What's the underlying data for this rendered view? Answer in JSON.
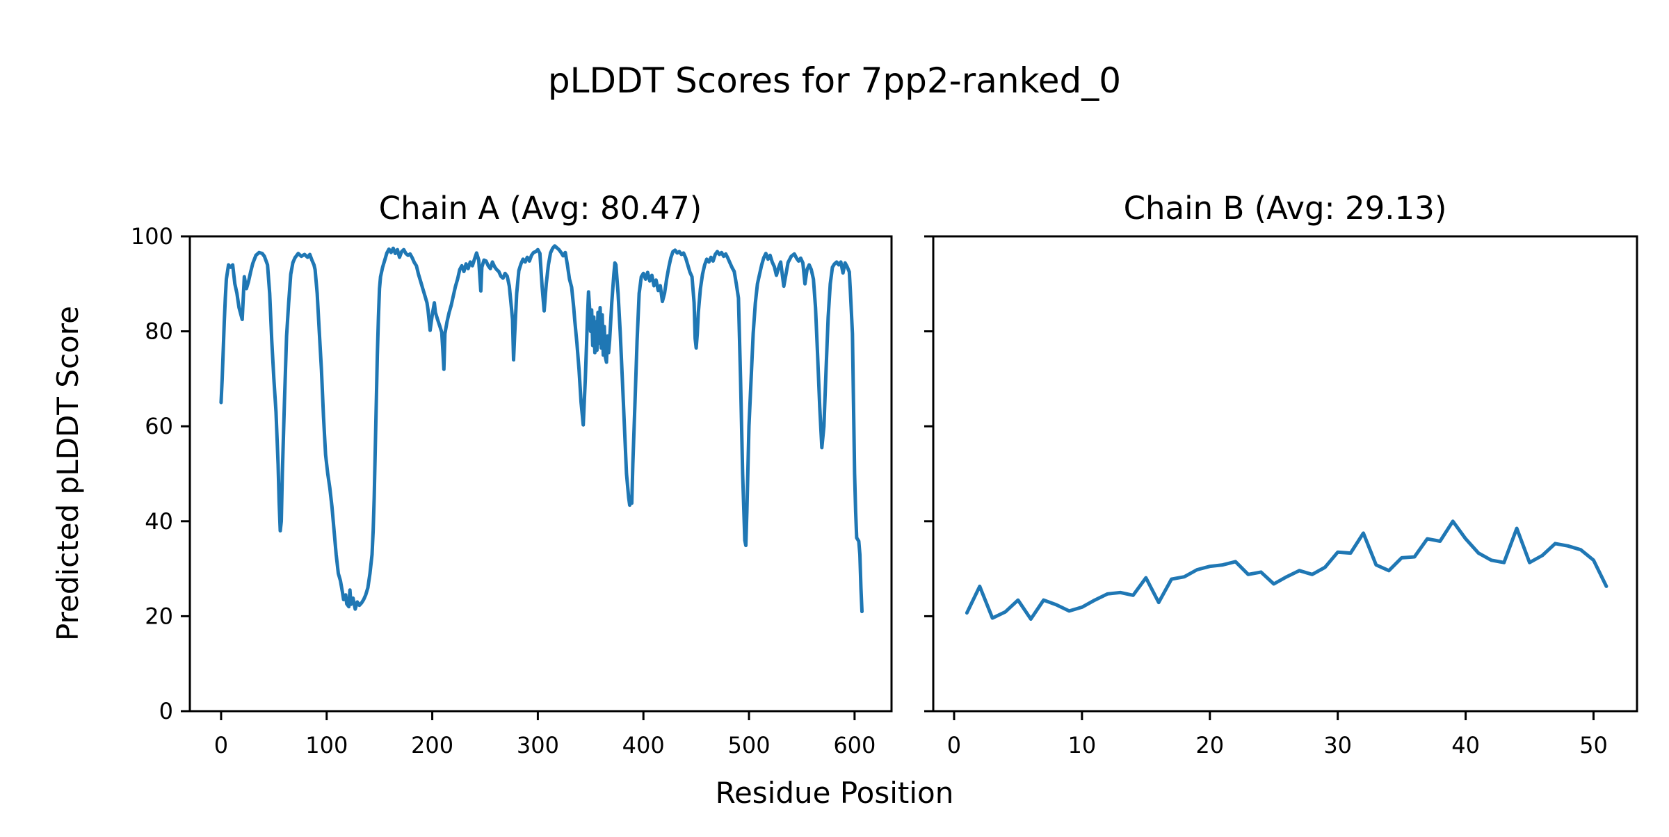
{
  "figure": {
    "title": "pLDDT Scores for 7pp2-ranked_0",
    "xlabel": "Residue Position",
    "ylabel": "Predicted pLDDT Score",
    "line_color": "#1f77b4",
    "axis_color": "#000000",
    "background": "#ffffff"
  },
  "chart_data": [
    {
      "type": "line",
      "title": "Chain A (Avg: 80.47)",
      "avg_label": 80.47,
      "ylim": [
        0,
        100
      ],
      "xlim": [
        -29.6,
        635
      ],
      "xticks": [
        0,
        100,
        200,
        300,
        400,
        500,
        600
      ],
      "yticks": [
        0,
        20,
        40,
        60,
        80,
        100
      ],
      "show_ytick_labels": true,
      "grid": false,
      "legend": false,
      "series": [
        {
          "name": "Chain A",
          "x": [
            0,
            1,
            2,
            3,
            4,
            5,
            7,
            9,
            11,
            13,
            15,
            17,
            20,
            22,
            24,
            26,
            28,
            30,
            33,
            36,
            39,
            41,
            44,
            46,
            48,
            50,
            52,
            54,
            55,
            56,
            57,
            58,
            60,
            62,
            64,
            66,
            68,
            70,
            73,
            76,
            79,
            82,
            84,
            86,
            88,
            89,
            91,
            93,
            95,
            97,
            99,
            101,
            103,
            105,
            107,
            109,
            111,
            113,
            115,
            116,
            118,
            119,
            121,
            122,
            123,
            125,
            127,
            129,
            131,
            133,
            135,
            137,
            139,
            141,
            143,
            144,
            145,
            146,
            147,
            148,
            149,
            150,
            151,
            153,
            155,
            157,
            159,
            161,
            163,
            165,
            167,
            169,
            171,
            173,
            175,
            177,
            179,
            181,
            183,
            185,
            187,
            189,
            191,
            193,
            195,
            196,
            198,
            200,
            202,
            203,
            205,
            207,
            209,
            210,
            211,
            212,
            214,
            216,
            218,
            220,
            222,
            224,
            226,
            228,
            230,
            232,
            234,
            236,
            238,
            240,
            242,
            244,
            246,
            247,
            249,
            251,
            253,
            255,
            257,
            259,
            261,
            263,
            265,
            267,
            269,
            271,
            273,
            275,
            276,
            277,
            278,
            280,
            282,
            284,
            286,
            288,
            290,
            292,
            294,
            296,
            298,
            300,
            302,
            304,
            306,
            308,
            310,
            312,
            314,
            316,
            318,
            320,
            322,
            324,
            326,
            328,
            330,
            332,
            334,
            335,
            337,
            339,
            341,
            343,
            345,
            347,
            348,
            349,
            350,
            351,
            352,
            353,
            354,
            355,
            356,
            357,
            358,
            359,
            360,
            361,
            362,
            363,
            364,
            365,
            366,
            367,
            368,
            370,
            372,
            373,
            374,
            376,
            378,
            380,
            382,
            384,
            386,
            387,
            388,
            389,
            390,
            392,
            394,
            396,
            398,
            400,
            402,
            404,
            406,
            408,
            410,
            412,
            414,
            416,
            418,
            420,
            422,
            424,
            426,
            428,
            430,
            432,
            434,
            436,
            438,
            440,
            442,
            444,
            446,
            448,
            449,
            450,
            451,
            452,
            454,
            456,
            458,
            460,
            462,
            464,
            466,
            468,
            470,
            472,
            474,
            476,
            478,
            480,
            482,
            484,
            486,
            488,
            490,
            492,
            494,
            496,
            497,
            498,
            500,
            502,
            504,
            506,
            508,
            510,
            512,
            514,
            516,
            518,
            520,
            522,
            524,
            526,
            528,
            530,
            533,
            535,
            537,
            540,
            543,
            545,
            547,
            549,
            551,
            553,
            555,
            557,
            559,
            561,
            563,
            565,
            567,
            569,
            571,
            573,
            575,
            577,
            579,
            581,
            583,
            585,
            587,
            589,
            591,
            593,
            595,
            596,
            598,
            599,
            600,
            601,
            602,
            604,
            605,
            606,
            607
          ],
          "y": [
            65,
            70,
            76,
            82,
            87,
            91,
            94,
            93.5,
            94,
            90,
            88,
            85,
            82.5,
            91.5,
            89,
            90.5,
            92.5,
            94.3,
            96,
            96.6,
            96.4,
            95.8,
            94,
            88,
            78,
            70,
            63,
            52,
            44,
            38,
            40,
            50,
            65,
            79,
            86,
            92,
            94.5,
            95.5,
            96.4,
            95.8,
            96.2,
            95.6,
            96.2,
            95,
            94,
            93,
            88,
            80,
            72,
            62,
            54,
            50,
            47,
            43,
            38,
            33,
            29,
            27.5,
            25,
            23.5,
            24.5,
            22.6,
            22,
            25.5,
            22.5,
            23.8,
            21.5,
            23,
            22.3,
            22.8,
            23.5,
            24.5,
            26,
            29,
            33,
            38,
            45,
            55,
            65,
            75,
            83,
            89,
            91.5,
            93.5,
            95,
            96.5,
            97.3,
            96.6,
            97.5,
            96.4,
            97.2,
            95.6,
            96.8,
            97.2,
            96.4,
            96,
            96.3,
            95.5,
            94.5,
            93.8,
            92,
            90.5,
            89,
            87.5,
            86,
            84.5,
            80.2,
            83.5,
            86,
            84,
            82.5,
            81.2,
            79.8,
            76,
            72,
            79.5,
            82,
            84,
            85.5,
            87.5,
            89.5,
            91,
            93,
            93.8,
            92.6,
            94.2,
            93.2,
            94.6,
            93.8,
            95.2,
            96.5,
            95,
            88.5,
            93.5,
            95,
            94.8,
            93.8,
            93.2,
            94.6,
            93.6,
            93,
            92.6,
            91.6,
            91.2,
            92.2,
            91.6,
            89.5,
            85,
            82.5,
            74,
            79,
            88,
            92.8,
            94.2,
            95.2,
            94.6,
            95.6,
            94.8,
            96,
            96.6,
            96.8,
            97.2,
            96.4,
            89.5,
            84.3,
            90,
            94,
            96.5,
            97.5,
            98,
            97.6,
            97.2,
            96.6,
            95.9,
            96.6,
            94,
            91,
            89.3,
            85,
            82.3,
            77.5,
            72,
            65,
            60.3,
            70,
            83,
            88.3,
            85,
            80,
            84.5,
            77,
            83,
            75.5,
            82,
            76,
            84,
            77.5,
            85,
            76.5,
            83.5,
            75,
            81,
            74.5,
            73.5,
            79,
            75.5,
            78,
            86,
            92,
            94.4,
            94,
            88,
            80,
            70,
            60,
            50,
            45,
            43.4,
            44.5,
            43.8,
            52,
            65,
            78,
            88,
            91.5,
            92.2,
            91,
            92.4,
            90.6,
            91.8,
            89.6,
            90.8,
            88.6,
            89.6,
            86.3,
            88,
            91,
            93.5,
            95.5,
            96.8,
            97.1,
            96.5,
            96.8,
            96.2,
            96.5,
            95.5,
            94,
            92.5,
            91.5,
            86,
            78.5,
            76.5,
            79.5,
            84,
            89,
            92,
            94,
            95.2,
            94.6,
            95.6,
            94.8,
            96.2,
            96.8,
            96.2,
            96.6,
            95.8,
            96.3,
            95.4,
            94.4,
            93.4,
            92.6,
            90,
            87,
            70,
            50,
            36,
            34.9,
            42,
            60,
            70,
            79.6,
            86,
            90,
            92,
            94,
            95.5,
            96.4,
            95.2,
            96,
            94.6,
            93.6,
            91.8,
            93.4,
            94.6,
            89.5,
            92,
            94.5,
            95.8,
            96.3,
            95.4,
            94.8,
            95.4,
            94.4,
            90,
            93,
            94,
            93,
            91,
            85,
            75,
            64,
            55.5,
            60,
            72,
            83,
            90,
            93.5,
            94.2,
            94.6,
            94,
            94.6,
            92.3,
            94.4,
            93.6,
            92.5,
            88.5,
            79.5,
            65,
            50,
            42,
            36.5,
            35.8,
            33,
            26,
            21
          ]
        }
      ]
    },
    {
      "type": "line",
      "title": "Chain B (Avg: 29.13)",
      "avg_label": 29.13,
      "ylim": [
        0,
        100
      ],
      "xlim": [
        -1.63,
        53.4
      ],
      "xticks": [
        0,
        10,
        20,
        30,
        40,
        50
      ],
      "yticks": [
        0,
        20,
        40,
        60,
        80,
        100
      ],
      "show_ytick_labels": false,
      "grid": false,
      "legend": false,
      "series": [
        {
          "name": "Chain B",
          "x": [
            1,
            2,
            3,
            4,
            5,
            6,
            7,
            8,
            9,
            10,
            11,
            12,
            13,
            14,
            15,
            16,
            17,
            18,
            19,
            20,
            21,
            22,
            23,
            24,
            25,
            26,
            27,
            28,
            29,
            30,
            31,
            32,
            33,
            34,
            35,
            36,
            37,
            38,
            39,
            40,
            41,
            42,
            43,
            44,
            45,
            46,
            47,
            48,
            49,
            50,
            51
          ],
          "y": [
            20.7,
            26.3,
            19.6,
            20.9,
            23.4,
            19.4,
            23.4,
            22.4,
            21.1,
            21.9,
            23.4,
            24.7,
            25.0,
            24.4,
            28.1,
            22.9,
            27.8,
            28.3,
            29.8,
            30.5,
            30.8,
            31.5,
            28.8,
            29.3,
            26.8,
            28.3,
            29.6,
            28.8,
            30.3,
            33.5,
            33.3,
            37.5,
            30.8,
            29.6,
            32.3,
            32.5,
            36.3,
            35.8,
            40.0,
            36.3,
            33.3,
            31.8,
            31.3,
            38.5,
            31.3,
            32.8,
            35.3,
            34.8,
            34.0,
            31.8,
            26.3
          ]
        }
      ]
    }
  ]
}
